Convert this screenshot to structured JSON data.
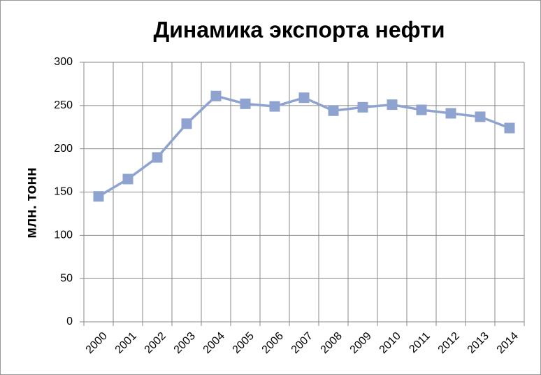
{
  "chart_data": {
    "type": "line",
    "title": "Динамика экспорта нефти",
    "y_label": "млн. тонн",
    "categories": [
      "2000",
      "2001",
      "2002",
      "2003",
      "2004",
      "2005",
      "2006",
      "2007",
      "2008",
      "2009",
      "2010",
      "2011",
      "2012",
      "2013",
      "2014"
    ],
    "values": [
      145,
      165,
      190,
      229,
      261,
      252,
      249,
      259,
      244,
      248,
      251,
      245,
      241,
      237,
      224
    ],
    "color": "#8ea3cf",
    "ylim": [
      0,
      300
    ],
    "yticks": [
      0,
      50,
      100,
      150,
      200,
      250,
      300
    ],
    "grid": true
  }
}
